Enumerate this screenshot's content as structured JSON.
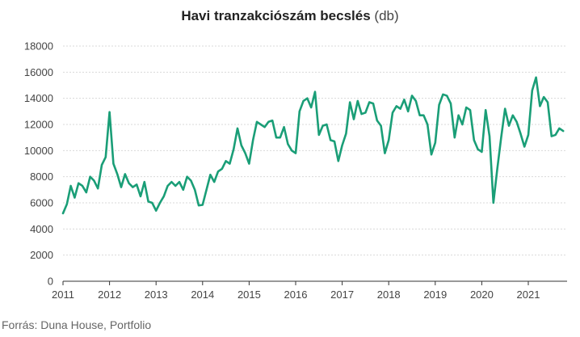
{
  "chart_data": {
    "type": "line",
    "title": "Havi tranzakciószám becslés",
    "title_unit": "(db)",
    "xlabel": "",
    "ylabel": "",
    "x_ticks": [
      "2011",
      "2012",
      "2013",
      "2014",
      "2015",
      "2016",
      "2017",
      "2018",
      "2019",
      "2020",
      "2021"
    ],
    "y_ticks": [
      "0",
      "2000",
      "4000",
      "6000",
      "8000",
      "10000",
      "12000",
      "14000",
      "16000",
      "18000"
    ],
    "ylim": [
      0,
      18000
    ],
    "xlim": [
      "2011-01",
      "2021-11"
    ],
    "grid": "horizontal",
    "line_color": "#1a9e77",
    "series": [
      {
        "x_start": "2011-01",
        "frequency": "monthly",
        "values": [
          5200,
          5900,
          7300,
          6400,
          7500,
          7300,
          6800,
          8000,
          7700,
          7100,
          8900,
          9500,
          12950,
          9000,
          8200,
          7200,
          8200,
          7500,
          7200,
          7400,
          6500,
          7600,
          6100,
          6000,
          5400,
          6000,
          6500,
          7300,
          7600,
          7300,
          7600,
          7000,
          8000,
          7700,
          7000,
          5800,
          5850,
          7000,
          8150,
          7600,
          8400,
          8600,
          9200,
          9000,
          10100,
          11700,
          10400,
          9800,
          9000,
          10800,
          12200,
          12000,
          11800,
          12200,
          12300,
          11000,
          11000,
          11800,
          10500,
          10000,
          9800,
          13000,
          13800,
          14000,
          13300,
          14500,
          11200,
          11900,
          12000,
          10800,
          10700,
          9200,
          10400,
          11300,
          13700,
          12400,
          13800,
          12800,
          12900,
          13700,
          13600,
          12300,
          11900,
          9800,
          10800,
          12900,
          13400,
          13200,
          13900,
          13000,
          14200,
          13800,
          12700,
          12700,
          12000,
          9700,
          10600,
          13500,
          14300,
          14200,
          13600,
          11000,
          12700,
          12000,
          13300,
          13100,
          10800,
          10100,
          9900,
          13100,
          11100,
          6000,
          8600,
          11000,
          13200,
          11900,
          12700,
          12200,
          11300,
          10300,
          11200,
          14600,
          15600,
          13400,
          14100,
          13700,
          11100,
          11200,
          11700,
          11500
        ]
      }
    ]
  },
  "source": "Forrás: Duna House, Portfolio"
}
